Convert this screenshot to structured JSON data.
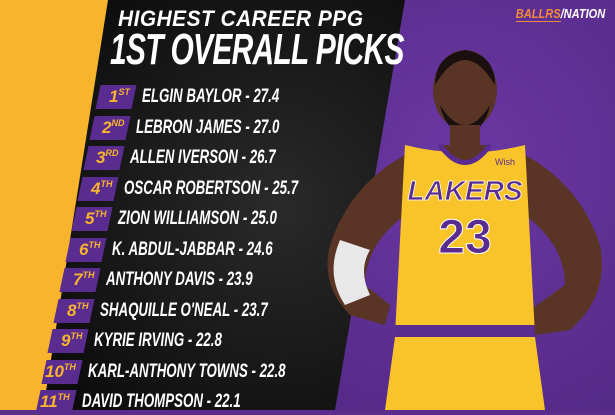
{
  "header": {
    "line1": "HIGHEST CAREER PPG",
    "line2": "1ST OVERALL PICKS"
  },
  "logo": {
    "part1": "BALLRS",
    "separator": "/",
    "part2": "NATION"
  },
  "colors": {
    "yellow": "#f7b42c",
    "purple": "#5b2c8f",
    "black": "#0c0c0c"
  },
  "rankings": [
    {
      "rank": "1",
      "suffix": "ST",
      "player": "ELGIN BAYLOR",
      "ppg": "27.4"
    },
    {
      "rank": "2",
      "suffix": "ND",
      "player": "LEBRON JAMES",
      "ppg": "27.0"
    },
    {
      "rank": "3",
      "suffix": "RD",
      "player": "ALLEN IVERSON",
      "ppg": "26.7"
    },
    {
      "rank": "4",
      "suffix": "TH",
      "player": "OSCAR ROBERTSON",
      "ppg": "25.7"
    },
    {
      "rank": "5",
      "suffix": "TH",
      "player": "ZION WILLIAMSON",
      "ppg": "25.0"
    },
    {
      "rank": "6",
      "suffix": "TH",
      "player": "K. ABDUL-JABBAR",
      "ppg": "24.6"
    },
    {
      "rank": "7",
      "suffix": "TH",
      "player": "ANTHONY DAVIS",
      "ppg": "23.9"
    },
    {
      "rank": "8",
      "suffix": "TH",
      "player": "SHAQUILLE O'NEAL",
      "ppg": "23.7"
    },
    {
      "rank": "9",
      "suffix": "TH",
      "player": "KYRIE IRVING",
      "ppg": "22.8"
    },
    {
      "rank": "10",
      "suffix": "TH",
      "player": "KARL-ANTHONY TOWNS",
      "ppg": "22.8"
    },
    {
      "rank": "11",
      "suffix": "TH",
      "player": "DAVID THOMPSON",
      "ppg": "22.1"
    }
  ],
  "jersey": {
    "team": "LAKERS",
    "number": "23",
    "sponsor": "Wish"
  }
}
